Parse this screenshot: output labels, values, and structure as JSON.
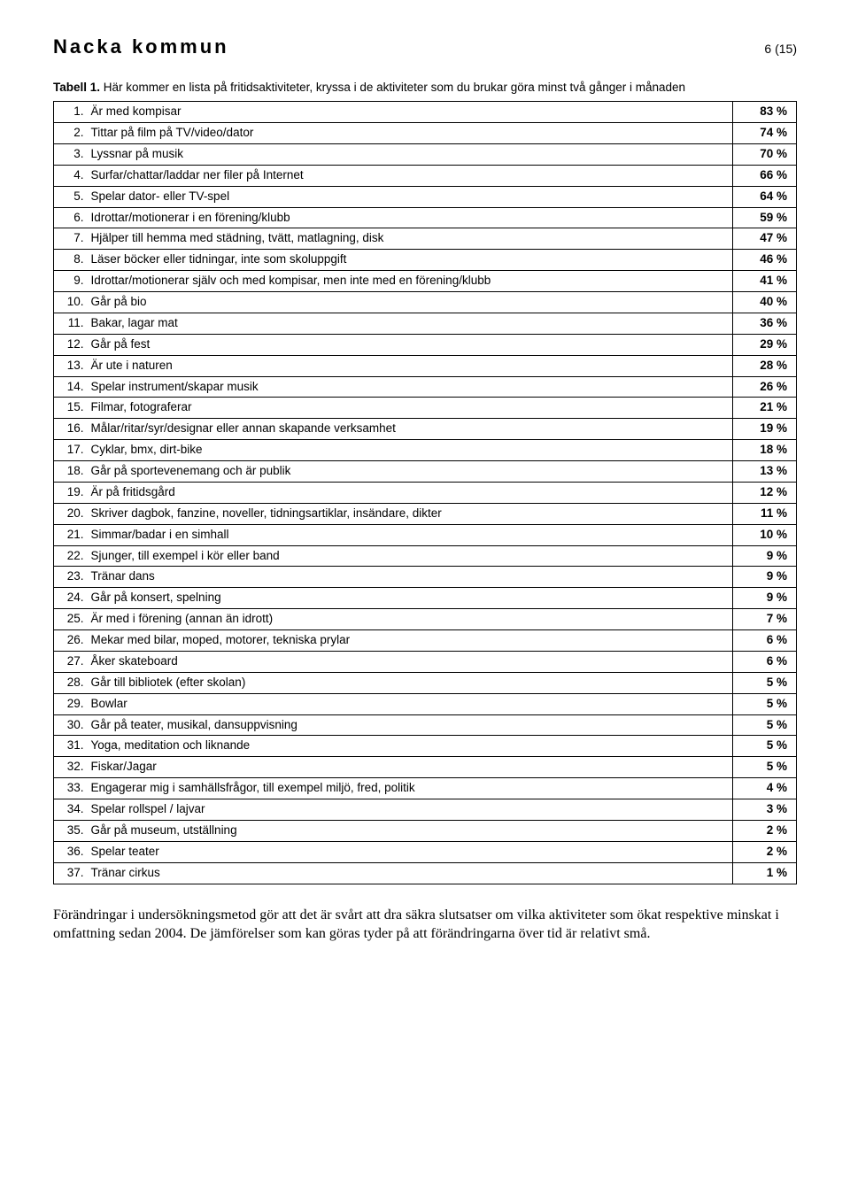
{
  "header": {
    "title": "Nacka kommun",
    "page": "6 (15)"
  },
  "caption": {
    "bold": "Tabell 1.",
    "rest": " Här kommer en lista på fritidsaktiviteter, kryssa i de aktiviteter som du brukar göra minst två gånger i månaden"
  },
  "rows": [
    {
      "n": "1.",
      "label": "Är med kompisar",
      "pct": "83 %"
    },
    {
      "n": "2.",
      "label": "Tittar på film på TV/video/dator",
      "pct": "74 %"
    },
    {
      "n": "3.",
      "label": "Lyssnar på musik",
      "pct": "70 %"
    },
    {
      "n": "4.",
      "label": "Surfar/chattar/laddar ner filer på Internet",
      "pct": "66 %"
    },
    {
      "n": "5.",
      "label": "Spelar dator- eller TV-spel",
      "pct": "64 %"
    },
    {
      "n": "6.",
      "label": "Idrottar/motionerar i en förening/klubb",
      "pct": "59 %"
    },
    {
      "n": "7.",
      "label": "Hjälper till hemma med städning, tvätt, matlagning, disk",
      "pct": "47 %"
    },
    {
      "n": "8.",
      "label": "Läser böcker eller tidningar, inte som skoluppgift",
      "pct": "46 %"
    },
    {
      "n": "9.",
      "label": "Idrottar/motionerar själv och med kompisar, men inte med en förening/klubb",
      "pct": "41 %"
    },
    {
      "n": "10.",
      "label": "Går på bio",
      "pct": "40 %"
    },
    {
      "n": "11.",
      "label": "Bakar, lagar mat",
      "pct": "36 %"
    },
    {
      "n": "12.",
      "label": "Går på fest",
      "pct": "29 %"
    },
    {
      "n": "13.",
      "label": "Är ute i naturen",
      "pct": "28 %"
    },
    {
      "n": "14.",
      "label": "Spelar instrument/skapar musik",
      "pct": "26 %"
    },
    {
      "n": "15.",
      "label": "Filmar, fotograferar",
      "pct": "21 %"
    },
    {
      "n": "16.",
      "label": "Målar/ritar/syr/designar eller annan skapande verksamhet",
      "pct": "19 %"
    },
    {
      "n": "17.",
      "label": "Cyklar, bmx, dirt-bike",
      "pct": "18 %"
    },
    {
      "n": "18.",
      "label": "Går på sportevenemang och är publik",
      "pct": "13 %"
    },
    {
      "n": "19.",
      "label": "Är på fritidsgård",
      "pct": "12 %"
    },
    {
      "n": "20.",
      "label": "Skriver dagbok, fanzine, noveller, tidningsartiklar, insändare, dikter",
      "pct": "11 %"
    },
    {
      "n": "21.",
      "label": "Simmar/badar i en simhall",
      "pct": "10 %"
    },
    {
      "n": "22.",
      "label": "Sjunger, till exempel i kör eller band",
      "pct": "9 %"
    },
    {
      "n": "23.",
      "label": "Tränar dans",
      "pct": "9 %"
    },
    {
      "n": "24.",
      "label": "Går på konsert, spelning",
      "pct": "9 %"
    },
    {
      "n": "25.",
      "label": "Är med i förening (annan än idrott)",
      "pct": "7 %"
    },
    {
      "n": "26.",
      "label": "Mekar med bilar, moped, motorer, tekniska prylar",
      "pct": "6 %"
    },
    {
      "n": "27.",
      "label": "Åker skateboard",
      "pct": "6 %"
    },
    {
      "n": "28.",
      "label": "Går till bibliotek (efter skolan)",
      "pct": "5 %"
    },
    {
      "n": "29.",
      "label": "Bowlar",
      "pct": "5 %"
    },
    {
      "n": "30.",
      "label": "Går på teater, musikal, dansuppvisning",
      "pct": "5 %"
    },
    {
      "n": "31.",
      "label": "Yoga, meditation och liknande",
      "pct": "5 %"
    },
    {
      "n": "32.",
      "label": "Fiskar/Jagar",
      "pct": "5 %"
    },
    {
      "n": "33.",
      "label": "Engagerar mig i samhällsfrågor, till exempel miljö, fred, politik",
      "pct": "4 %"
    },
    {
      "n": "34.",
      "label": "Spelar rollspel / lajvar",
      "pct": "3 %"
    },
    {
      "n": "35.",
      "label": "Går på museum, utställning",
      "pct": "2 %"
    },
    {
      "n": "36.",
      "label": "Spelar teater",
      "pct": "2 %"
    },
    {
      "n": "37.",
      "label": "Tränar cirkus",
      "pct": "1 %"
    }
  ],
  "footer": "Förändringar i undersökningsmetod gör att det är svårt att dra säkra slutsatser om vilka aktiviteter som ökat respektive minskat i omfattning sedan 2004. De jämförelser som kan göras tyder på att förändringarna över tid är relativt små.",
  "style": {
    "text_color": "#000000",
    "border_color": "#000000",
    "background": "#ffffff"
  }
}
